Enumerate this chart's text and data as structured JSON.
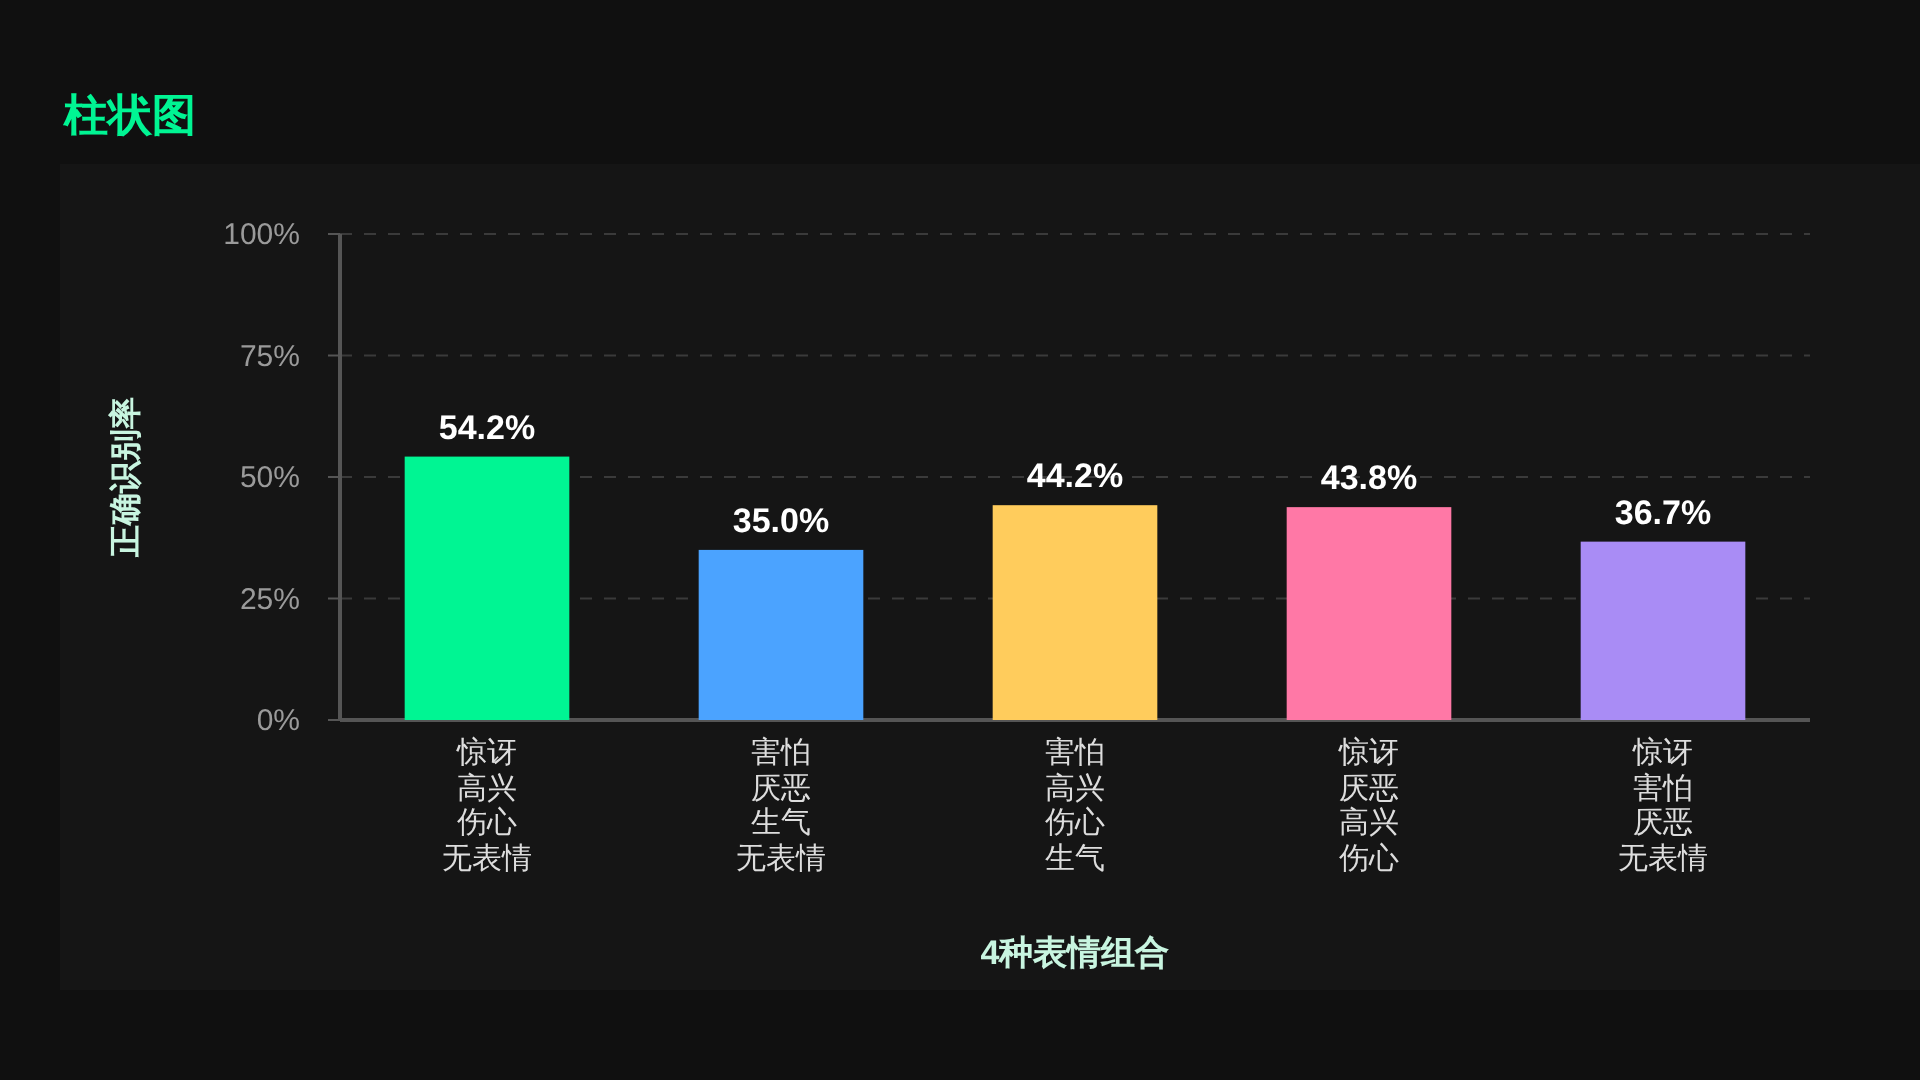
{
  "chart_data": {
    "type": "bar",
    "title": "柱状图",
    "xlabel": "4种表情组合",
    "ylabel": "正确识别率",
    "categories": [
      "惊讶高兴伤心无表情",
      "害怕厌恶生气无表情",
      "害怕高兴伤心生气",
      "惊讶厌恶高兴伤心",
      "惊讶害怕厌恶无表情"
    ],
    "values": [
      54.2,
      35.0,
      44.2,
      43.8,
      36.7
    ],
    "value_labels": [
      "54.2%",
      "35.0%",
      "44.2%",
      "43.8%",
      "36.7%"
    ],
    "colors": [
      "#00f593",
      "#4ba3ff",
      "#ffcc5c",
      "#ff78a6",
      "#a98cf5"
    ],
    "ylim": [
      0,
      100
    ],
    "yticks": [
      {
        "value": 0,
        "label": "0%"
      },
      {
        "value": 25,
        "label": "25%"
      },
      {
        "value": 50,
        "label": "50%"
      },
      {
        "value": 75,
        "label": "75%"
      },
      {
        "value": 100,
        "label": "100%"
      }
    ],
    "grid": "y"
  }
}
